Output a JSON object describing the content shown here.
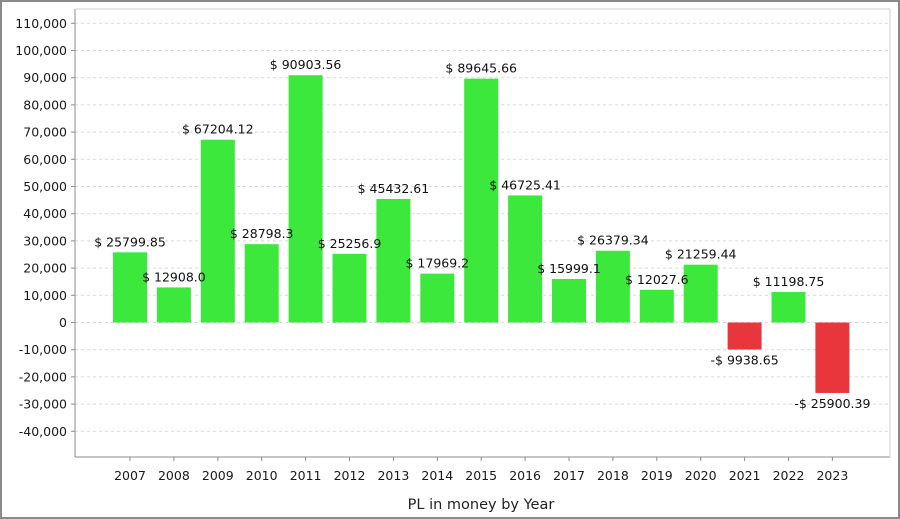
{
  "chart_data": {
    "type": "bar",
    "title": "",
    "xlabel": "PL in money by Year",
    "ylabel": "",
    "ylim": [
      -45000,
      110000
    ],
    "yticks": [
      110000,
      100000,
      90000,
      80000,
      70000,
      60000,
      50000,
      40000,
      30000,
      20000,
      10000,
      0,
      -10000,
      -20000,
      -30000,
      -40000
    ],
    "ytick_labels": [
      "110,000",
      "100,000",
      "90,000",
      "80,000",
      "70,000",
      "60,000",
      "50,000",
      "40,000",
      "30,000",
      "20,000",
      "10,000",
      "0",
      "-10,000",
      "-20,000",
      "-30,000",
      "-40,000"
    ],
    "grid": true,
    "categories": [
      "2007",
      "2008",
      "2009",
      "2010",
      "2011",
      "2012",
      "2013",
      "2014",
      "2015",
      "2016",
      "2017",
      "2018",
      "2019",
      "2020",
      "2021",
      "2022",
      "2023"
    ],
    "values": [
      25799.85,
      12908.0,
      67204.12,
      28798.3,
      90903.56,
      25256.9,
      45432.61,
      17969.2,
      89645.66,
      46725.41,
      15999.1,
      26379.34,
      12027.6,
      21259.44,
      -9938.65,
      11198.75,
      -25900.39
    ],
    "data_labels": [
      "$ 25799.85",
      "$ 12908.0",
      "$ 67204.12",
      "$ 28798.3",
      "$ 90903.56",
      "$ 25256.9",
      "$ 45432.61",
      "$ 17969.2",
      "$ 89645.66",
      "$ 46725.41",
      "$ 15999.1",
      "$ 26379.34",
      "$ 12027.6",
      "$ 21259.44",
      "-$ 9938.65",
      "$ 11198.75",
      "-$ 25900.39"
    ],
    "colors": {
      "positive": "#3de83d",
      "negative": "#e8363c",
      "grid": "#d8d8d8",
      "axis": "#8c8c8c"
    }
  }
}
